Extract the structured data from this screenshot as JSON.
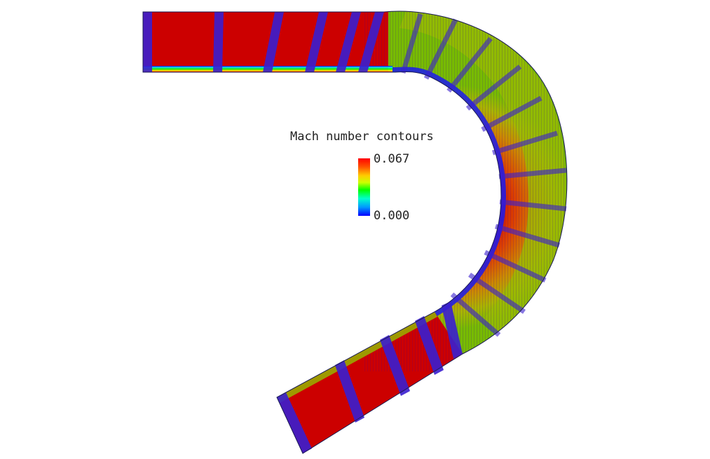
{
  "legend": {
    "title": "Mach number contours",
    "max_label": "0.067",
    "min_label": "0.000"
  },
  "scale": {
    "min": 0.0,
    "max": 0.067,
    "colormap": [
      "#0000ff",
      "#00aaff",
      "#00ffcc",
      "#00ff00",
      "#ccff00",
      "#ffff00",
      "#ffaa00",
      "#ff4400",
      "#ff0000"
    ]
  },
  "colors": {
    "background": "#ffffff",
    "core_flow": "#cc0000",
    "wall_mesh": "#0000ff",
    "outer_bend_flow": "#7fbf00"
  }
}
